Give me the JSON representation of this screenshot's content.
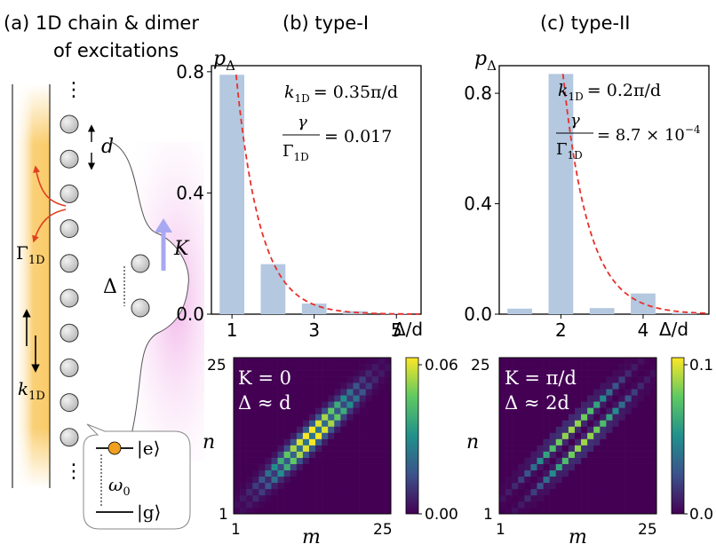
{
  "panel_a": {
    "label": "(a)",
    "title_line1": "1D chain & dimer",
    "title_line2": "of excitations",
    "dots_top": "⋮",
    "dots_bottom": "⋮",
    "d_label": "d",
    "gamma_label": "Γ",
    "gamma_sub": "1D",
    "k_label": "k",
    "k_sub": "1D",
    "delta_label": "Δ",
    "K_label": "K",
    "excited_state": "|e⟩",
    "ground_state": "|g⟩",
    "omega_label": "ω",
    "omega_sub": "0"
  },
  "panel_b": {
    "label": "(b) type-I",
    "ylabel": "p",
    "ylabel_sub": "Δ",
    "xlabel": "Δ/d",
    "k_text_pre": "k",
    "k_text_sub": "1D",
    "k_text_post": "= 0.35π/d",
    "ratio_num": "γ",
    "ratio_den": "Γ",
    "ratio_den_sub": "1D",
    "ratio_value": "= 0.017",
    "heatmap_line1": "K = 0",
    "heatmap_line2": "Δ ≈ d",
    "heat_xlabel": "m",
    "heat_ylabel": "n",
    "heat_xticks": [
      "1",
      "25"
    ],
    "heat_yticks": [
      "25",
      "1"
    ],
    "colorbar_ticks": [
      "0.06",
      "0.00"
    ]
  },
  "panel_c": {
    "label": "(c) type-II",
    "ylabel": "p",
    "ylabel_sub": "Δ",
    "xlabel": "Δ/d",
    "k_text_pre": "k",
    "k_text_sub": "1D",
    "k_text_post": "= 0.2π/d",
    "ratio_num": "γ",
    "ratio_den": "Γ",
    "ratio_den_sub": "1D",
    "ratio_value": "= 8.7 × 10",
    "ratio_exp": "−4",
    "heatmap_line1": "K = π/d",
    "heatmap_line2": "Δ ≈ 2d",
    "heat_xlabel": "m",
    "heat_ylabel": "n",
    "heat_xticks": [
      "1",
      "25"
    ],
    "heat_yticks": [
      "25",
      "1"
    ],
    "colorbar_ticks": [
      "0.1",
      "0.0"
    ]
  },
  "colors": {
    "bar": "#b4c8e0",
    "fit": "#e8302a",
    "waveguide": "#f9c860",
    "wavepacket": "#f7c6ec",
    "arrow_K": "#a8a8f0",
    "atom_dot": "#f0a020",
    "emission": "#e04020"
  },
  "chart_data": [
    {
      "type": "bar",
      "panel": "b",
      "categories": [
        1,
        2,
        3,
        4,
        5
      ],
      "values": [
        0.79,
        0.165,
        0.035,
        0.01,
        0.003
      ],
      "fit_curve": "exponential",
      "ylabel": "pΔ",
      "xlabel": "Δ/d",
      "yticks": [
        0.0,
        0.4,
        0.8
      ],
      "xticks": [
        1,
        3,
        5
      ],
      "ylim": [
        0,
        0.82
      ],
      "xlim": [
        0.5,
        5.6
      ]
    },
    {
      "type": "bar",
      "panel": "c",
      "categories": [
        1,
        2,
        3,
        4,
        5
      ],
      "values": [
        0.02,
        0.87,
        0.022,
        0.075,
        0.005
      ],
      "fit_curve": "exponential",
      "ylabel": "pΔ",
      "xlabel": "Δ/d",
      "yticks": [
        0.0,
        0.4,
        0.8
      ],
      "xticks": [
        2,
        4
      ],
      "ylim": [
        0,
        0.9
      ],
      "xlim": [
        0.5,
        5.6
      ]
    },
    {
      "type": "heatmap",
      "panel": "b",
      "grid": 25,
      "band_offsets": [
        1
      ],
      "peak": 0.06,
      "colorbar_range": [
        0.0,
        0.06
      ],
      "xlabel": "m",
      "ylabel": "n"
    },
    {
      "type": "heatmap",
      "panel": "c",
      "grid": 25,
      "band_offsets": [
        2
      ],
      "peak": 0.1,
      "colorbar_range": [
        0.0,
        0.1
      ],
      "xlabel": "m",
      "ylabel": "n"
    }
  ]
}
